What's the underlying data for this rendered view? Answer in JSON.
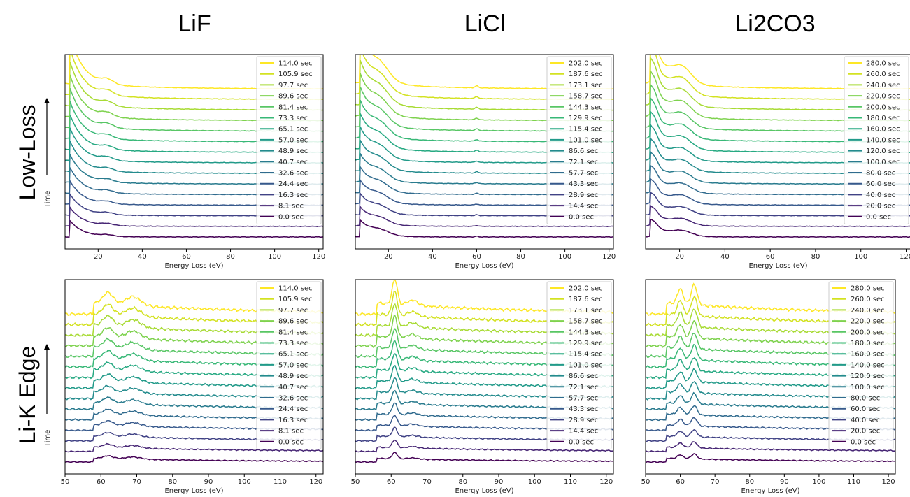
{
  "row_titles": [
    "Low-Loss",
    "Li-K Edge"
  ],
  "time_label": "Time",
  "colors": [
    "#440154",
    "#472f7d",
    "#3b518b",
    "#31688e",
    "#287c8e",
    "#21918c",
    "#20a386",
    "#35b779",
    "#5ec962",
    "#90d743",
    "#c8e020",
    "#fde725"
  ],
  "chart_data": [
    {
      "type": "line",
      "title": "LiF",
      "panel": "Low-Loss",
      "xlabel": "Energy Loss (eV)",
      "ylabel": "",
      "xlim": [
        5,
        122
      ],
      "xticks": [
        20,
        40,
        60,
        80,
        100,
        120
      ],
      "legend": [
        "114.0 sec",
        "105.9 sec",
        "97.7 sec",
        "89.6 sec",
        "81.4 sec",
        "73.3 sec",
        "65.1 sec",
        "57.0 sec",
        "48.9 sec",
        "40.7 sec",
        "32.6 sec",
        "24.4 sec",
        "16.3 sec",
        "8.1 sec",
        "0.0 sec"
      ],
      "features": {
        "onset": 7,
        "peaks": [
          [
            24,
            0.18,
            4
          ]
        ],
        "style": "lowloss"
      }
    },
    {
      "type": "line",
      "title": "LiCl",
      "panel": "Low-Loss",
      "xlabel": "Energy Loss (eV)",
      "ylabel": "",
      "xlim": [
        5,
        122
      ],
      "xticks": [
        20,
        40,
        60,
        80,
        100,
        120
      ],
      "legend": [
        "202.0 sec",
        "187.6 sec",
        "173.1 sec",
        "158.7 sec",
        "144.3 sec",
        "129.9 sec",
        "115.4 sec",
        "101.0 sec",
        "86.6 sec",
        "72.1 sec",
        "57.7 sec",
        "43.3 sec",
        "28.9 sec",
        "14.4 sec",
        "0.0 sec"
      ],
      "features": {
        "onset": 7,
        "peaks": [
          [
            16,
            0.55,
            6
          ],
          [
            60,
            0.08,
            1
          ]
        ],
        "style": "lowloss"
      }
    },
    {
      "type": "line",
      "title": "Li2CO3",
      "panel": "Low-Loss",
      "xlabel": "Energy Loss (eV)",
      "ylabel": "",
      "xlim": [
        5,
        122
      ],
      "xticks": [
        20,
        40,
        60,
        80,
        100,
        120
      ],
      "legend": [
        "280.0 sec",
        "260.0 sec",
        "240.0 sec",
        "220.0 sec",
        "200.0 sec",
        "180.0 sec",
        "160.0 sec",
        "140.0 sec",
        "120.0 sec",
        "100.0 sec",
        "80.0 sec",
        "60.0 sec",
        "40.0 sec",
        "20.0 sec",
        "0.0 sec"
      ],
      "features": {
        "onset": 7,
        "peaks": [
          [
            9,
            0.35,
            2
          ],
          [
            21,
            0.6,
            6
          ]
        ],
        "style": "lowloss"
      }
    },
    {
      "type": "line",
      "title": "",
      "panel": "Li-K Edge",
      "xlabel": "Energy Loss (eV)",
      "ylabel": "",
      "xlim": [
        50,
        122
      ],
      "xticks": [
        50,
        60,
        70,
        80,
        90,
        100,
        110,
        120
      ],
      "legend": [
        "114.0 sec",
        "105.9 sec",
        "97.7 sec",
        "89.6 sec",
        "81.4 sec",
        "73.3 sec",
        "65.1 sec",
        "57.0 sec",
        "48.9 sec",
        "40.7 sec",
        "32.6 sec",
        "24.4 sec",
        "16.3 sec",
        "8.1 sec",
        "0.0 sec"
      ],
      "features": {
        "onset": 58,
        "peaks": [
          [
            62,
            0.45,
            2
          ],
          [
            69,
            0.35,
            3
          ]
        ],
        "style": "edge"
      }
    },
    {
      "type": "line",
      "title": "",
      "panel": "Li-K Edge",
      "xlabel": "Energy Loss (eV)",
      "ylabel": "",
      "xlim": [
        50,
        122
      ],
      "xticks": [
        50,
        60,
        70,
        80,
        90,
        100,
        110,
        120
      ],
      "legend": [
        "202.0 sec",
        "187.6 sec",
        "173.1 sec",
        "158.7 sec",
        "144.3 sec",
        "129.9 sec",
        "115.4 sec",
        "101.0 sec",
        "86.6 sec",
        "72.1 sec",
        "57.7 sec",
        "43.3 sec",
        "28.9 sec",
        "14.4 sec",
        "0.0 sec"
      ],
      "features": {
        "onset": 56,
        "peaks": [
          [
            61,
            1.0,
            1
          ],
          [
            66,
            0.2,
            2
          ]
        ],
        "style": "edge"
      }
    },
    {
      "type": "line",
      "title": "",
      "panel": "Li-K Edge",
      "xlabel": "Energy Loss (eV)",
      "ylabel": "",
      "xlim": [
        50,
        122
      ],
      "xticks": [
        50,
        60,
        70,
        80,
        90,
        100,
        110,
        120
      ],
      "legend": [
        "280.0 sec",
        "260.0 sec",
        "240.0 sec",
        "220.0 sec",
        "200.0 sec",
        "180.0 sec",
        "160.0 sec",
        "140.0 sec",
        "120.0 sec",
        "100.0 sec",
        "80.0 sec",
        "60.0 sec",
        "40.0 sec",
        "20.0 sec",
        "0.0 sec"
      ],
      "features": {
        "onset": 56,
        "peaks": [
          [
            60,
            0.6,
            1.2
          ],
          [
            64,
            0.8,
            1.2
          ]
        ],
        "style": "edge"
      }
    }
  ]
}
